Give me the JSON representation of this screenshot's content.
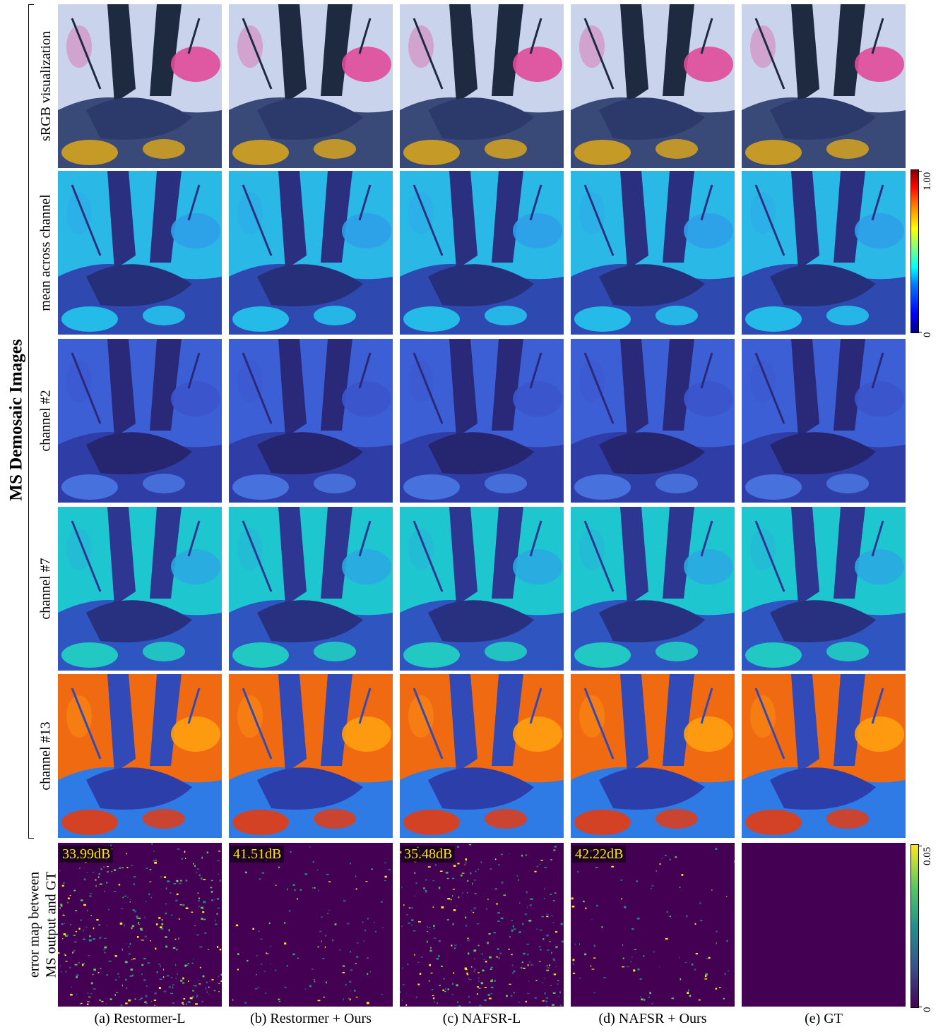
{
  "figure": {
    "side_title": "MS Demosaic Images",
    "rows": [
      {
        "id": "srgb",
        "label": "sRGB visualization"
      },
      {
        "id": "mean",
        "label": "mean across channel"
      },
      {
        "id": "ch2",
        "label": "channel #2"
      },
      {
        "id": "ch7",
        "label": "channel #7"
      },
      {
        "id": "ch13",
        "label": "channel #13"
      },
      {
        "id": "err",
        "label_line1": "error map between",
        "label_line2": "MS output and GT"
      }
    ],
    "columns": [
      {
        "caption": "(a) Restormer-L",
        "psnr": "33.99dB",
        "error_level": 0.9
      },
      {
        "caption": "(b) Restormer + Ours",
        "psnr": "41.51dB",
        "error_level": 0.3
      },
      {
        "caption": "(c) NAFSR-L",
        "psnr": "35.48dB",
        "error_level": 0.75
      },
      {
        "caption": "(d) NAFSR + Ours",
        "psnr": "42.22dB",
        "error_level": 0.25
      },
      {
        "caption": "(e) GT",
        "psnr": "",
        "error_level": 0
      }
    ],
    "colorbar_jet": {
      "max_label": "1.00",
      "min_label": "0"
    },
    "colorbar_viridis": {
      "max_label": "0.05",
      "min_label": "0"
    },
    "colors": {
      "psnr_text": "#f5ea00",
      "viridis_base": "#440154"
    }
  }
}
